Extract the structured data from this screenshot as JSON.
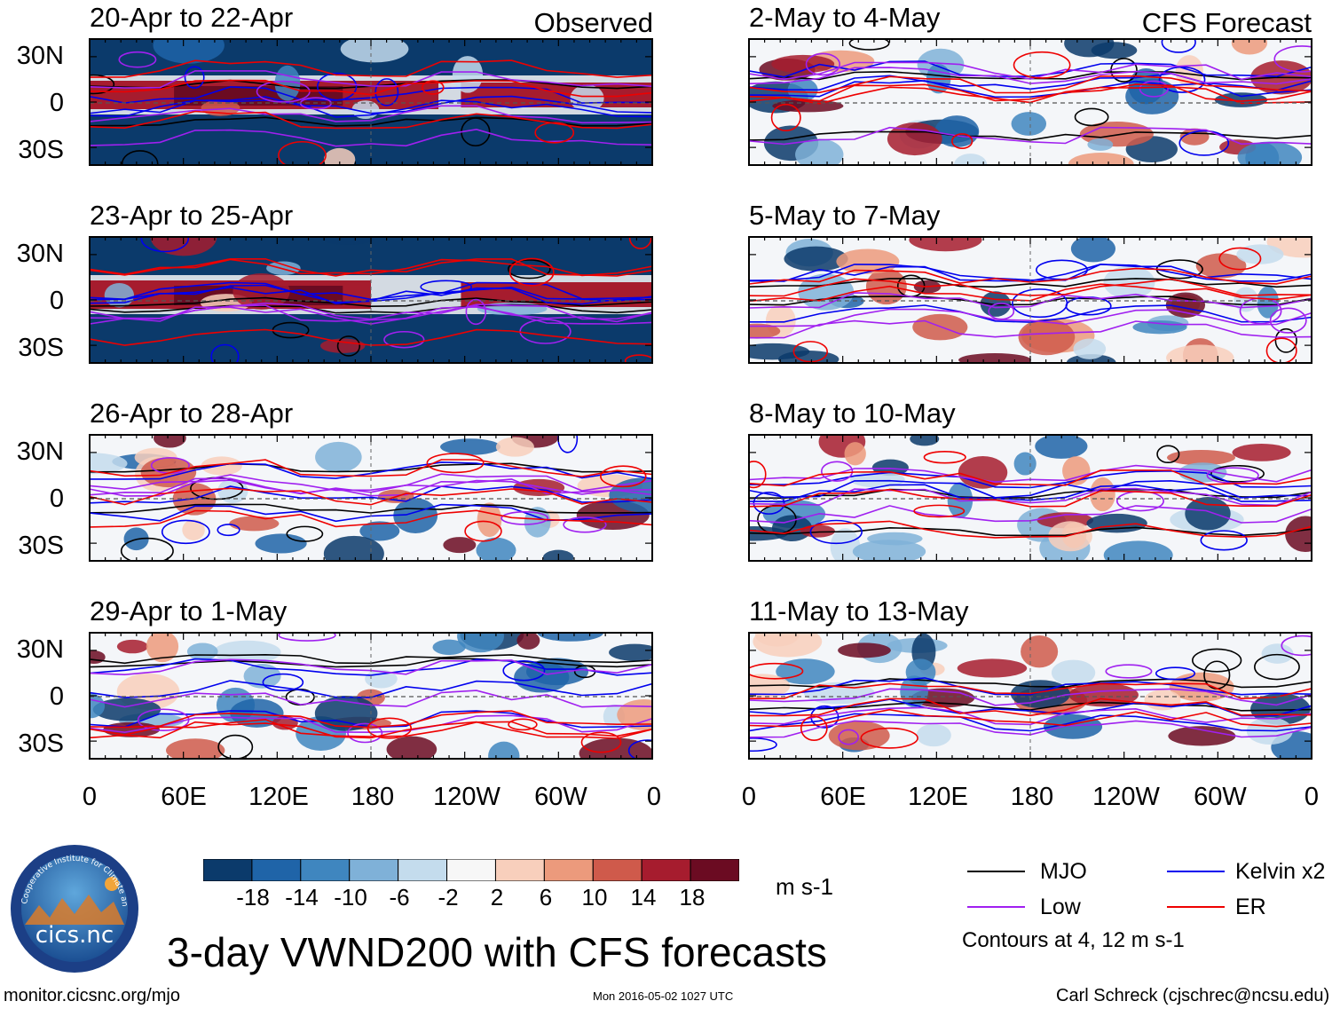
{
  "title": "3-day VWND200 with CFS forecasts",
  "units": "m s-1",
  "left_column_label": "Observed",
  "right_column_label": "CFS Forecast",
  "logo": {
    "text": "cics.nc",
    "ring_text": "Cooperative Institute for Climate and Satellites"
  },
  "footer": {
    "url": "monitor.cicsnc.org/mjo",
    "timestamp": "Mon 2016-05-02 1027 UTC",
    "author": "Carl Schreck (cjschrec@ncsu.edu)"
  },
  "legend": {
    "items": [
      {
        "label": "MJO",
        "color": "#000000"
      },
      {
        "label": "Kelvin x2",
        "color": "#0000ee"
      },
      {
        "label": "Low",
        "color": "#a020f0"
      },
      {
        "label": "ER",
        "color": "#ee0000"
      }
    ],
    "note": "Contours at 4, 12 m s-1"
  },
  "chart_data": {
    "type": "heatmap",
    "variable": "VWND200",
    "latitude_ticks": [
      "30N",
      "0",
      "30S"
    ],
    "longitude_ticks": [
      "0",
      "60E",
      "120E",
      "180",
      "120W",
      "60W",
      "0"
    ],
    "colorbar": {
      "labels": [
        "-18",
        "-14",
        "-10",
        "-6",
        "-2",
        "2",
        "6",
        "10",
        "14",
        "18"
      ],
      "colors": [
        "#0b3a6b",
        "#1f64a8",
        "#3f86bf",
        "#7fb1d8",
        "#c4dced",
        "#f7f7f7",
        "#f8cfbc",
        "#ec9a7c",
        "#cf5a4b",
        "#a61c2e",
        "#6b0b22"
      ]
    },
    "panels": [
      {
        "period": "20-Apr to 22-Apr",
        "column": "Observed"
      },
      {
        "period": "23-Apr to 25-Apr",
        "column": "Observed"
      },
      {
        "period": "26-Apr to 28-Apr",
        "column": "Observed"
      },
      {
        "period": "29-Apr to 1-May",
        "column": "Observed"
      },
      {
        "period": "2-May to 4-May",
        "column": "CFS Forecast"
      },
      {
        "period": "5-May to 7-May",
        "column": "CFS Forecast"
      },
      {
        "period": "8-May to 10-May",
        "column": "CFS Forecast"
      },
      {
        "period": "11-May to 13-May",
        "column": "CFS Forecast"
      }
    ]
  }
}
